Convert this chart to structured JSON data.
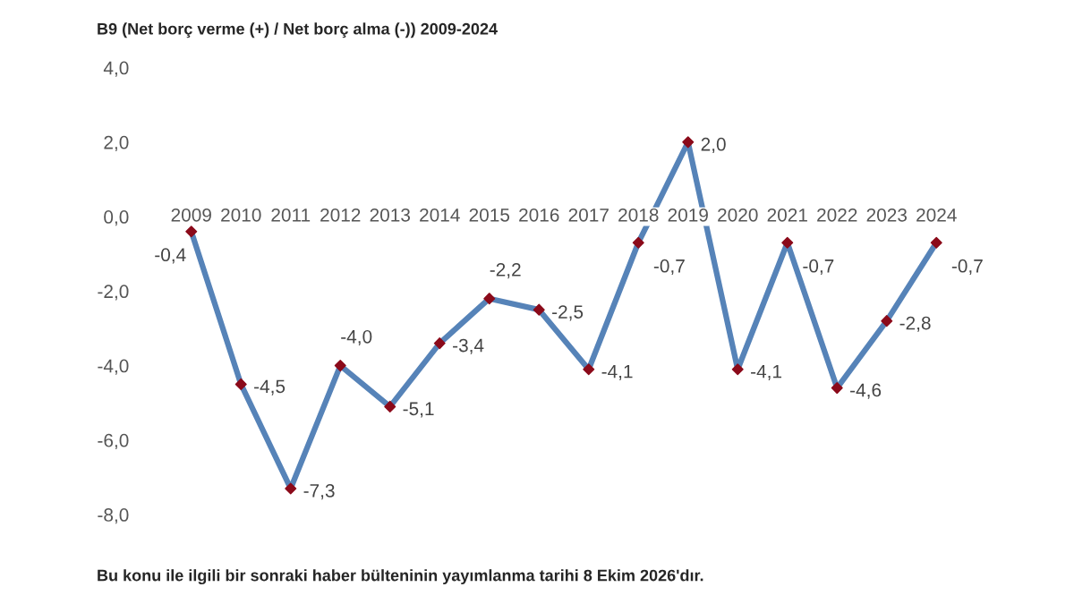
{
  "chart_data": {
    "type": "line",
    "title": "B9 (Net borç verme (+) / Net borç alma (-)) 2009-2024",
    "categories": [
      "2009",
      "2010",
      "2011",
      "2012",
      "2013",
      "2014",
      "2015",
      "2016",
      "2017",
      "2018",
      "2019",
      "2020",
      "2021",
      "2022",
      "2023",
      "2024"
    ],
    "series": [
      {
        "color": "#5683b8",
        "values": [
          -0.4,
          -4.5,
          -7.3,
          -4.0,
          -5.1,
          -3.4,
          -2.2,
          -2.5,
          -4.1,
          -0.7,
          2.0,
          -4.1,
          -0.7,
          -4.6,
          -2.8,
          -0.7
        ],
        "value_labels": [
          "-0,4",
          "-4,5",
          "-7,3",
          "-4,0",
          "-5,1",
          "-3,4",
          "-2,2",
          "-2,5",
          "-4,1",
          "-0,7",
          "2,0",
          "-4,1",
          "-0,7",
          "-4,6",
          "-2,8",
          "-0,7"
        ]
      }
    ],
    "ylim": [
      -8,
      4
    ],
    "yticks": [
      {
        "value": -8,
        "label": "-8,0"
      },
      {
        "value": -6,
        "label": "-6,0"
      },
      {
        "value": -4,
        "label": "-4,0"
      },
      {
        "value": -2,
        "label": "-2,0"
      },
      {
        "value": 0,
        "label": "0,0"
      },
      {
        "value": 2,
        "label": "2,0"
      },
      {
        "value": 4,
        "label": "4,0"
      }
    ],
    "marker": "diamond",
    "line_style": "solid",
    "grid": false,
    "legend": false,
    "annotations": [
      "Bu konu ile ilgili bir sonraki haber bülteninin yayımlanma tarihi 8 Ekim 2026'dır."
    ]
  }
}
